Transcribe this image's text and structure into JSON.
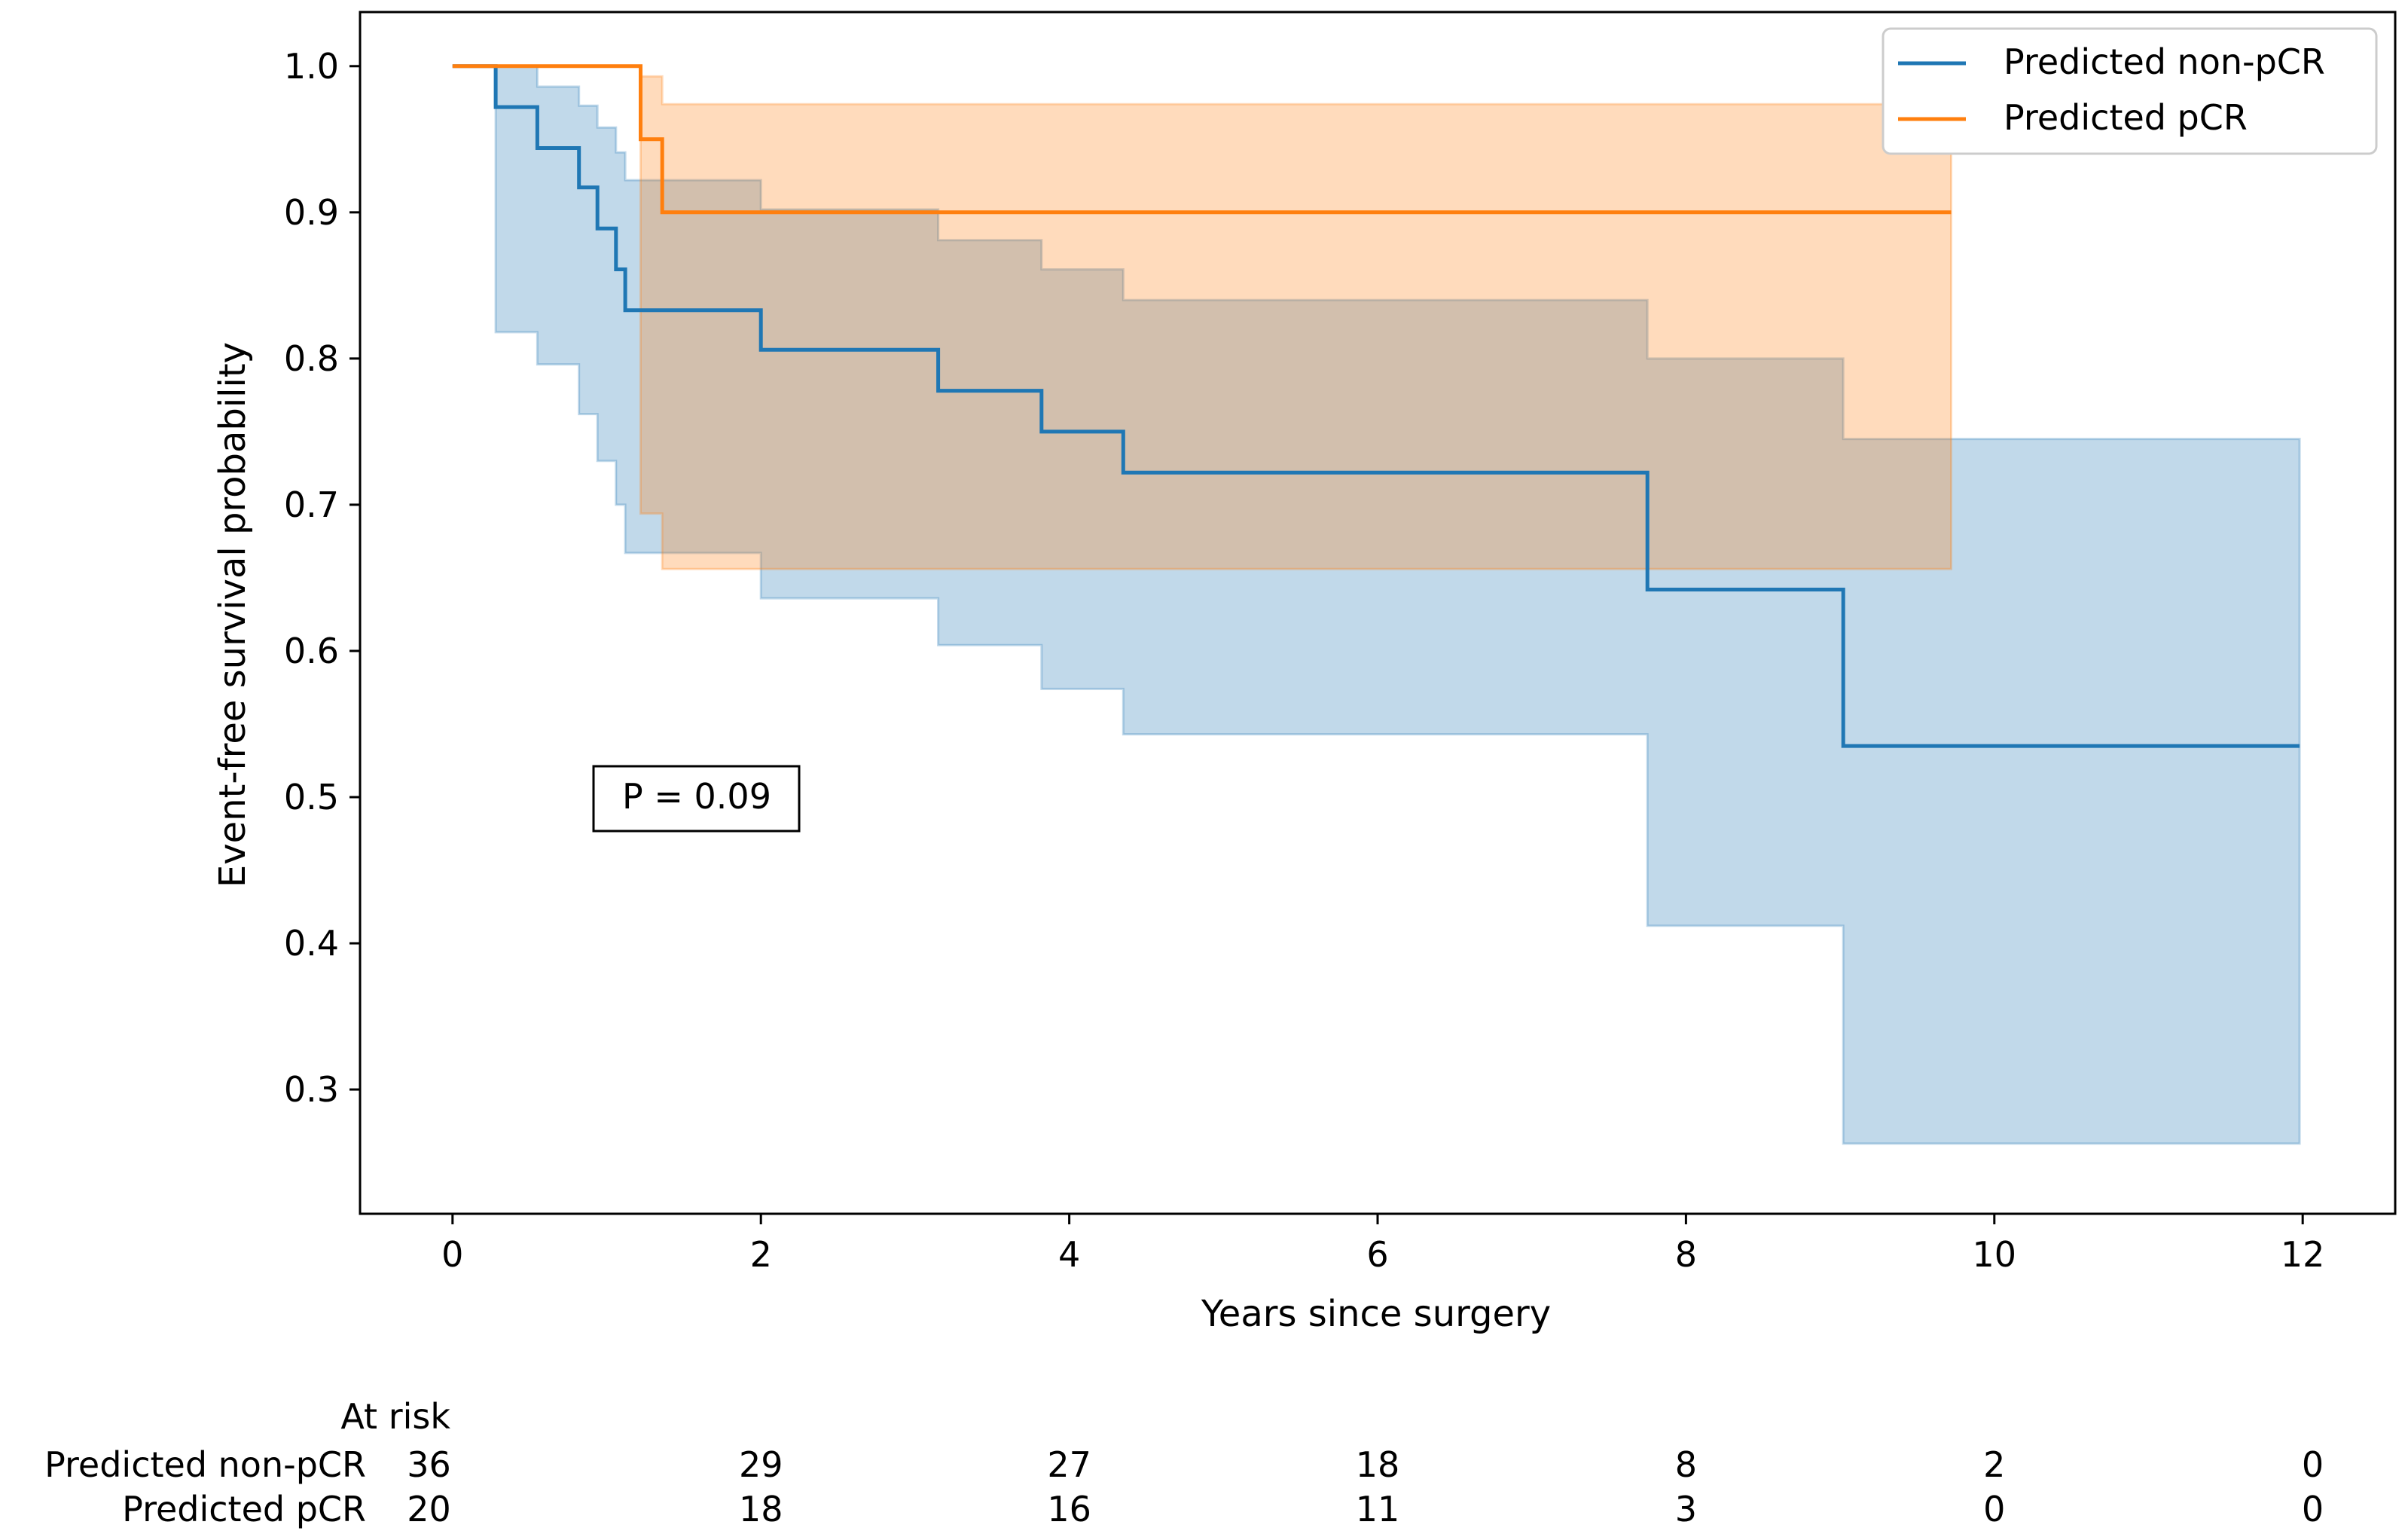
{
  "chart_data": {
    "type": "line",
    "subtype": "kaplan-meier step plot with confidence bands",
    "title": "",
    "xlabel": "Years since surgery",
    "ylabel": "Event-free survival probability",
    "xlim": [
      -0.6,
      12.6
    ],
    "ylim": [
      0.215,
      1.037
    ],
    "xticks": [
      0,
      2,
      4,
      6,
      8,
      10,
      12
    ],
    "yticks": [
      0.3,
      0.4,
      0.5,
      0.6,
      0.7,
      0.8,
      0.9,
      1.0
    ],
    "ytick_labels": [
      "0.3",
      "0.4",
      "0.5",
      "0.6",
      "0.7",
      "0.8",
      "0.9",
      "1.0"
    ],
    "grid": false,
    "legend_position": "top-right",
    "annotation": "P = 0.09",
    "series": [
      {
        "name": "Predicted non-pCR",
        "color": "#1f77b4",
        "band_color": "#1f77b4",
        "steps": [
          {
            "t": 0,
            "s": 1.0,
            "lo": 1.0,
            "hi": 1.0
          },
          {
            "t": 0.28,
            "s": 0.972,
            "lo": 0.818,
            "hi": 1.0
          },
          {
            "t": 0.55,
            "s": 0.944,
            "lo": 0.796,
            "hi": 0.986
          },
          {
            "t": 0.82,
            "s": 0.917,
            "lo": 0.762,
            "hi": 0.973
          },
          {
            "t": 0.94,
            "s": 0.889,
            "lo": 0.73,
            "hi": 0.958
          },
          {
            "t": 1.06,
            "s": 0.861,
            "lo": 0.7,
            "hi": 0.941
          },
          {
            "t": 1.12,
            "s": 0.833,
            "lo": 0.667,
            "hi": 0.922
          },
          {
            "t": 2.0,
            "s": 0.806,
            "lo": 0.636,
            "hi": 0.902
          },
          {
            "t": 3.15,
            "s": 0.778,
            "lo": 0.604,
            "hi": 0.881
          },
          {
            "t": 3.82,
            "s": 0.75,
            "lo": 0.574,
            "hi": 0.861
          },
          {
            "t": 4.35,
            "s": 0.722,
            "lo": 0.543,
            "hi": 0.84
          },
          {
            "t": 7.75,
            "s": 0.642,
            "lo": 0.412,
            "hi": 0.8
          },
          {
            "t": 9.02,
            "s": 0.535,
            "lo": 0.263,
            "hi": 0.745
          }
        ],
        "end": 11.98
      },
      {
        "name": "Predicted pCR",
        "color": "#ff7f0e",
        "band_color": "#ff7f0e",
        "steps": [
          {
            "t": 0,
            "s": 1.0,
            "lo": 1.0,
            "hi": 1.0
          },
          {
            "t": 1.22,
            "s": 0.95,
            "lo": 0.694,
            "hi": 0.993
          },
          {
            "t": 1.36,
            "s": 0.9,
            "lo": 0.656,
            "hi": 0.974
          }
        ],
        "end": 9.72
      }
    ],
    "at_risk": {
      "header": "At risk",
      "times": [
        0,
        2,
        4,
        6,
        8,
        10,
        12
      ],
      "rows": [
        {
          "label": "Predicted non-pCR",
          "counts": [
            "36",
            "29",
            "27",
            "18",
            "8",
            "2",
            "0"
          ]
        },
        {
          "label": "Predicted pCR",
          "counts": [
            "20",
            "18",
            "16",
            "11",
            "3",
            "0",
            "0"
          ]
        }
      ]
    }
  }
}
